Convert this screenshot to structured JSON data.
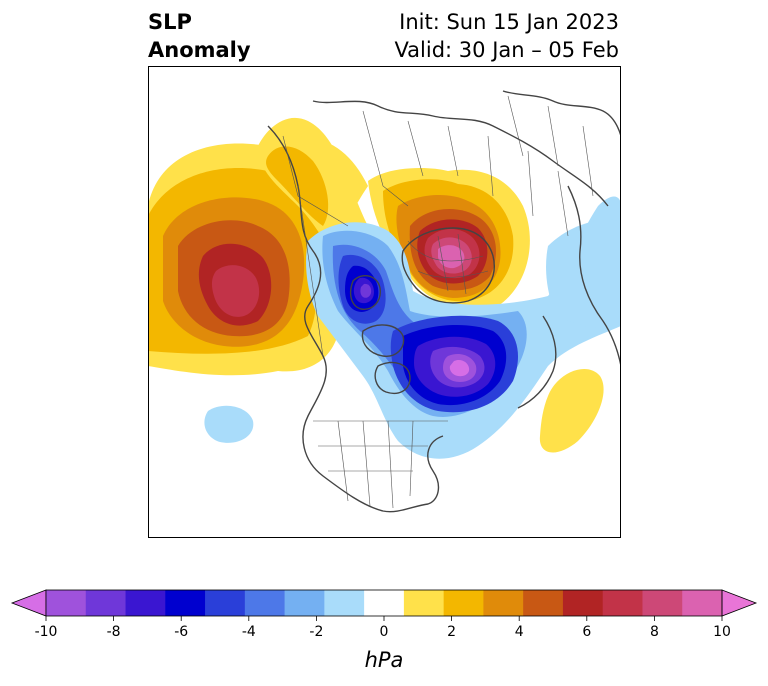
{
  "title": {
    "left_line1": "SLP",
    "left_line2": "Anomaly",
    "init": "Init: Sun 15 Jan 2023",
    "valid": "Valid: 30 Jan – 05 Feb"
  },
  "colorbar": {
    "unit": "hPa",
    "range": [
      -10,
      10
    ],
    "tick_labels": [
      "-10",
      "-8",
      "-6",
      "-4",
      "-2",
      "0",
      "2",
      "4",
      "6",
      "8",
      "10"
    ],
    "colors": [
      "#d66ee6",
      "#9f52dc",
      "#6f37d9",
      "#3a16d1",
      "#0000cf",
      "#2a3fd9",
      "#4d78e8",
      "#74b0f2",
      "#a9dcfa",
      "#ffffff",
      "#ffe14a",
      "#f3b700",
      "#e08b0a",
      "#c85814",
      "#b12424",
      "#c23348",
      "#cd4877",
      "#db62b0",
      "#e975d7"
    ]
  }
}
